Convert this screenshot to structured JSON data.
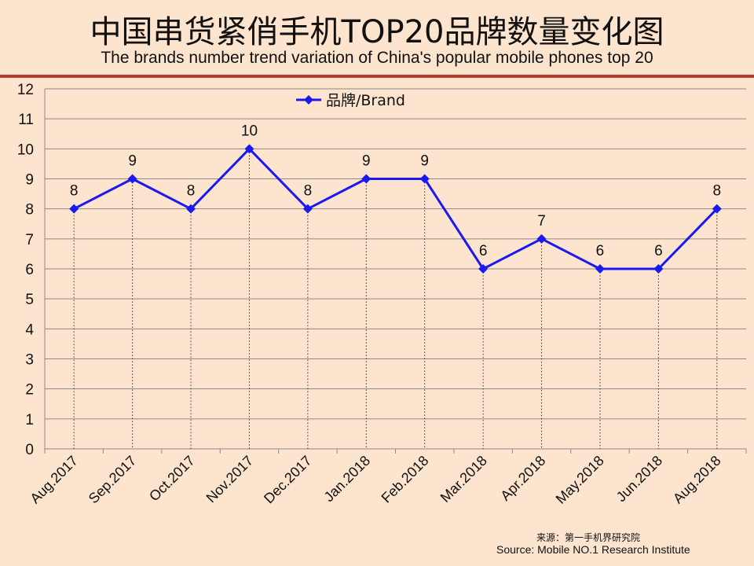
{
  "header": {
    "title_cn": "中国串货紧俏手机TOP20品牌数量变化图",
    "title_en": "The brands number trend variation of China's popular mobile phones top 20"
  },
  "footer": {
    "source_cn": "来源：第一手机界研究院",
    "source_en": "Source: Mobile NO.1 Research Institute"
  },
  "colors": {
    "background": "#FCE4CE",
    "series": "#1A1AF0",
    "accent_rule": "#B53A2F"
  },
  "chart_data": {
    "type": "line",
    "title": "",
    "xlabel": "",
    "ylabel": "",
    "categories": [
      "Aug.2017",
      "Sep.2017",
      "Oct.2017",
      "Nov.2017",
      "Dec.2017",
      "Jan.2018",
      "Feb.2018",
      "Mar.2018",
      "Apr.2018",
      "May.2018",
      "Jun.2018",
      "Aug.2018"
    ],
    "series": [
      {
        "name": "品牌/Brand",
        "values": [
          8,
          9,
          8,
          10,
          8,
          9,
          9,
          6,
          7,
          6,
          6,
          8
        ]
      }
    ],
    "ylim": [
      0,
      12
    ],
    "yticks": [
      "0",
      "1",
      "2",
      "3",
      "4",
      "5",
      "6",
      "7",
      "8",
      "9",
      "10",
      "11",
      "12"
    ],
    "data_labels": [
      "8",
      "9",
      "8",
      "10",
      "8",
      "9",
      "9",
      "6",
      "7",
      "6",
      "6",
      "8"
    ],
    "grid": "horizontal",
    "legend": "top-left"
  }
}
